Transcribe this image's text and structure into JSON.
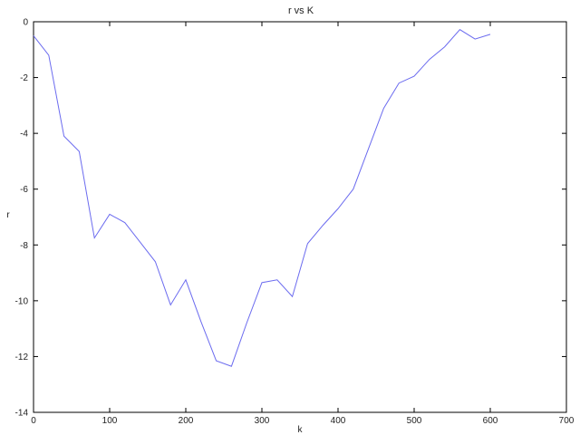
{
  "chart_data": {
    "type": "line",
    "title": "r vs K",
    "xlabel": "k",
    "ylabel": "r",
    "xlim": [
      0,
      700
    ],
    "ylim": [
      -14,
      0
    ],
    "x_ticks": [
      0,
      100,
      200,
      300,
      400,
      500,
      600,
      700
    ],
    "y_ticks": [
      0,
      -2,
      -4,
      -6,
      -8,
      -10,
      -12,
      -14
    ],
    "grid": false,
    "legend": "none",
    "series": [
      {
        "color": "#6b6bef",
        "x": [
          0,
          20,
          40,
          60,
          80,
          100,
          120,
          140,
          160,
          180,
          200,
          220,
          240,
          260,
          280,
          300,
          320,
          340,
          360,
          380,
          400,
          420,
          440,
          460,
          480,
          500,
          520,
          540,
          560,
          580,
          600
        ],
        "y": [
          -0.5,
          -1.2,
          -4.1,
          -4.65,
          -7.75,
          -6.9,
          -7.2,
          -7.9,
          -8.6,
          -10.15,
          -9.25,
          -10.75,
          -12.15,
          -12.35,
          -10.8,
          -9.35,
          -9.25,
          -9.85,
          -7.95,
          -7.3,
          -6.7,
          -6.0,
          -4.55,
          -3.1,
          -2.2,
          -1.95,
          -1.35,
          -0.9,
          -0.28,
          -0.62,
          -0.45
        ]
      }
    ]
  }
}
